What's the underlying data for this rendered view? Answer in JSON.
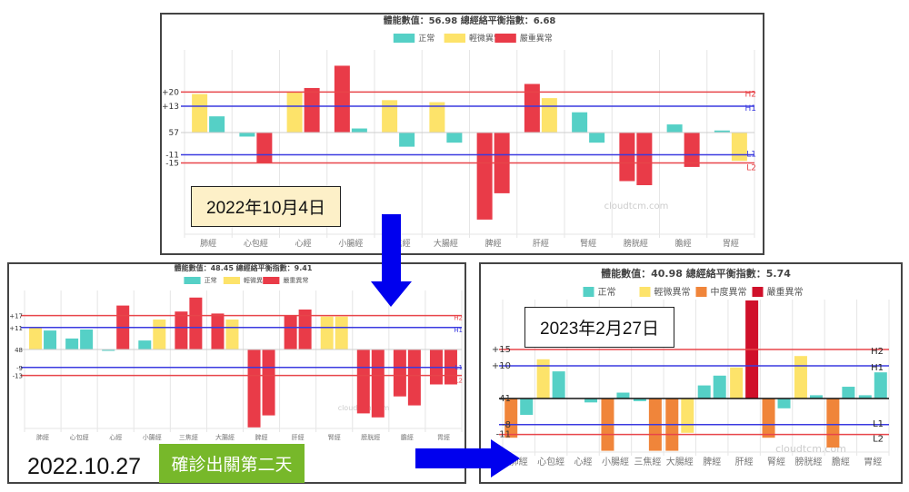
{
  "colors": {
    "normal": "#55d0c6",
    "mild": "#fde36a",
    "moderate": "#f0853a",
    "severe": "#e93b48",
    "critical": "#d0102a",
    "h2": "#e8454a",
    "h1": "#3a3ae0",
    "grid": "#e6e6e6"
  },
  "annotations": {
    "date1": "2022年10月4日",
    "date2": "2022.10.27",
    "date2_note": "確診出關第二天",
    "date3": "2023年2月27日",
    "watermark": "cloudtcm.com",
    "arrow_down_icon": "arrow-down",
    "arrow_right_icon": "arrow-right"
  },
  "chart_data": [
    {
      "type": "bar",
      "title": "體能數值：56.98 總經絡平衡指數：6.68",
      "legend": [
        {
          "key": "normal",
          "label": "正常"
        },
        {
          "key": "mild",
          "label": "輕微異常"
        },
        {
          "key": "severe",
          "label": "嚴重異常"
        }
      ],
      "legend_placement": "top",
      "categories": [
        "肺經",
        "心包經",
        "心經",
        "小腸經",
        "三焦經",
        "大腸經",
        "脾經",
        "肝經",
        "腎經",
        "膀胱經",
        "膽經",
        "胃經"
      ],
      "baseline_label": "57",
      "ref_lines": [
        {
          "name": "H2",
          "value": 20,
          "label": "+20",
          "color": "h2"
        },
        {
          "name": "H1",
          "value": 13,
          "label": "+13",
          "color": "h1"
        },
        {
          "name": "L1",
          "value": -11,
          "label": "-11",
          "color": "h1"
        },
        {
          "name": "L2",
          "value": -15,
          "label": "-15",
          "color": "h2"
        }
      ],
      "bars": [
        [
          {
            "v": 19,
            "s": "mild"
          },
          {
            "v": 8,
            "s": "normal"
          }
        ],
        [
          {
            "v": -2,
            "s": "normal"
          },
          {
            "v": -15,
            "s": "severe"
          }
        ],
        [
          {
            "v": 20,
            "s": "mild"
          },
          {
            "v": 22,
            "s": "severe"
          }
        ],
        [
          {
            "v": 33,
            "s": "severe"
          },
          {
            "v": 2,
            "s": "normal"
          }
        ],
        [
          {
            "v": 16,
            "s": "mild"
          },
          {
            "v": -7,
            "s": "normal"
          }
        ],
        [
          {
            "v": 15,
            "s": "mild"
          },
          {
            "v": -5,
            "s": "normal"
          }
        ],
        [
          {
            "v": -43,
            "s": "severe"
          },
          {
            "v": -30,
            "s": "severe"
          }
        ],
        [
          {
            "v": 24,
            "s": "severe"
          },
          {
            "v": 17,
            "s": "mild"
          }
        ],
        [
          {
            "v": 10,
            "s": "normal"
          },
          {
            "v": -5,
            "s": "normal"
          }
        ],
        [
          {
            "v": -24,
            "s": "severe"
          },
          {
            "v": -26,
            "s": "severe"
          }
        ],
        [
          {
            "v": 4,
            "s": "normal"
          },
          {
            "v": -17,
            "s": "severe"
          }
        ],
        [
          {
            "v": 1,
            "s": "normal"
          },
          {
            "v": -14,
            "s": "mild"
          }
        ]
      ],
      "grid": true
    },
    {
      "type": "bar",
      "title": "體能數值：48.45 總經絡平衡指數：9.41",
      "legend": [
        {
          "key": "normal",
          "label": "正常"
        },
        {
          "key": "mild",
          "label": "輕微異常"
        },
        {
          "key": "severe",
          "label": "嚴重異常"
        }
      ],
      "legend_placement": "top",
      "categories": [
        "肺經",
        "心包經",
        "心經",
        "小腸經",
        "三焦經",
        "大腸經",
        "脾經",
        "肝經",
        "腎經",
        "膀胱經",
        "膽經",
        "胃經"
      ],
      "baseline_label": "48",
      "ref_lines": [
        {
          "name": "H2",
          "value": 17,
          "label": "+17",
          "color": "h2"
        },
        {
          "name": "H1",
          "value": 11,
          "label": "+11",
          "color": "h1"
        },
        {
          "name": "L1",
          "value": -9,
          "label": "-9",
          "color": "h1"
        },
        {
          "name": "L2",
          "value": -13,
          "label": "-13",
          "color": "h2"
        }
      ],
      "bars": [
        [
          {
            "v": 11,
            "s": "mild"
          },
          {
            "v": 9.5,
            "s": "normal"
          }
        ],
        [
          {
            "v": 5.5,
            "s": "normal"
          },
          {
            "v": 10,
            "s": "normal"
          }
        ],
        [
          {
            "v": -0.6,
            "s": "normal"
          },
          {
            "v": 22,
            "s": "severe"
          }
        ],
        [
          {
            "v": 4.5,
            "s": "normal"
          },
          {
            "v": 15,
            "s": "mild"
          }
        ],
        [
          {
            "v": 19,
            "s": "severe"
          },
          {
            "v": 26,
            "s": "severe"
          }
        ],
        [
          {
            "v": 18,
            "s": "severe"
          },
          {
            "v": 15,
            "s": "mild"
          }
        ],
        [
          {
            "v": -39,
            "s": "severe"
          },
          {
            "v": -33,
            "s": "severe"
          }
        ],
        [
          {
            "v": 17,
            "s": "severe"
          },
          {
            "v": 20,
            "s": "severe"
          }
        ],
        [
          {
            "v": 16.5,
            "s": "mild"
          },
          {
            "v": 16.5,
            "s": "mild"
          }
        ],
        [
          {
            "v": -32,
            "s": "severe"
          },
          {
            "v": -34,
            "s": "severe"
          }
        ],
        [
          {
            "v": -23.5,
            "s": "severe"
          },
          {
            "v": -28,
            "s": "severe"
          }
        ],
        [
          {
            "v": -17.5,
            "s": "severe"
          },
          {
            "v": -17.5,
            "s": "severe"
          }
        ]
      ],
      "grid": true
    },
    {
      "type": "bar",
      "title": "體能數值：40.98 總經絡平衡指數：5.74",
      "legend": [
        {
          "key": "normal",
          "label": "正常"
        },
        {
          "key": "mild",
          "label": "輕微異常"
        },
        {
          "key": "moderate",
          "label": "中度異常"
        },
        {
          "key": "critical",
          "label": "嚴重異常"
        }
      ],
      "legend_placement": "top",
      "categories": [
        "肺經",
        "心包經",
        "心經",
        "小腸經",
        "三焦經",
        "大腸經",
        "脾經",
        "肝經",
        "腎經",
        "膀胱經",
        "膽經",
        "胃經"
      ],
      "baseline_label": "41",
      "ref_lines": [
        {
          "name": "H2",
          "value": 15,
          "label": "+15",
          "color": "h2"
        },
        {
          "name": "H1",
          "value": 10,
          "label": "+10",
          "color": "h1"
        },
        {
          "name": "L1",
          "value": -8,
          "label": "-8",
          "color": "h1"
        },
        {
          "name": "L2",
          "value": -11,
          "label": "-11",
          "color": "h2"
        }
      ],
      "bars": [
        [
          {
            "v": -12,
            "s": "moderate"
          },
          {
            "v": -5,
            "s": "normal"
          }
        ],
        [
          {
            "v": 12,
            "s": "mild"
          },
          {
            "v": 8.3,
            "s": "normal"
          }
        ],
        [
          null,
          {
            "v": -1.2,
            "s": "normal"
          }
        ],
        [
          {
            "v": -16,
            "s": "moderate"
          },
          {
            "v": 1.8,
            "s": "normal"
          }
        ],
        [
          {
            "v": -0.8,
            "s": "normal"
          },
          {
            "v": -16,
            "s": "moderate"
          }
        ],
        [
          {
            "v": -16,
            "s": "moderate"
          },
          {
            "v": -10.5,
            "s": "mild"
          }
        ],
        [
          {
            "v": 4,
            "s": "normal"
          },
          {
            "v": 7,
            "s": "normal"
          }
        ],
        [
          {
            "v": 9.5,
            "s": "mild"
          },
          {
            "v": 30,
            "s": "critical"
          }
        ],
        [
          {
            "v": -12,
            "s": "moderate"
          },
          {
            "v": -3,
            "s": "normal"
          }
        ],
        [
          {
            "v": 13,
            "s": "mild"
          },
          {
            "v": 1,
            "s": "normal"
          }
        ],
        [
          {
            "v": -15,
            "s": "moderate"
          },
          {
            "v": 3.6,
            "s": "normal"
          }
        ],
        [
          {
            "v": 1,
            "s": "normal"
          },
          {
            "v": 8,
            "s": "normal"
          }
        ]
      ],
      "grid": true
    }
  ]
}
